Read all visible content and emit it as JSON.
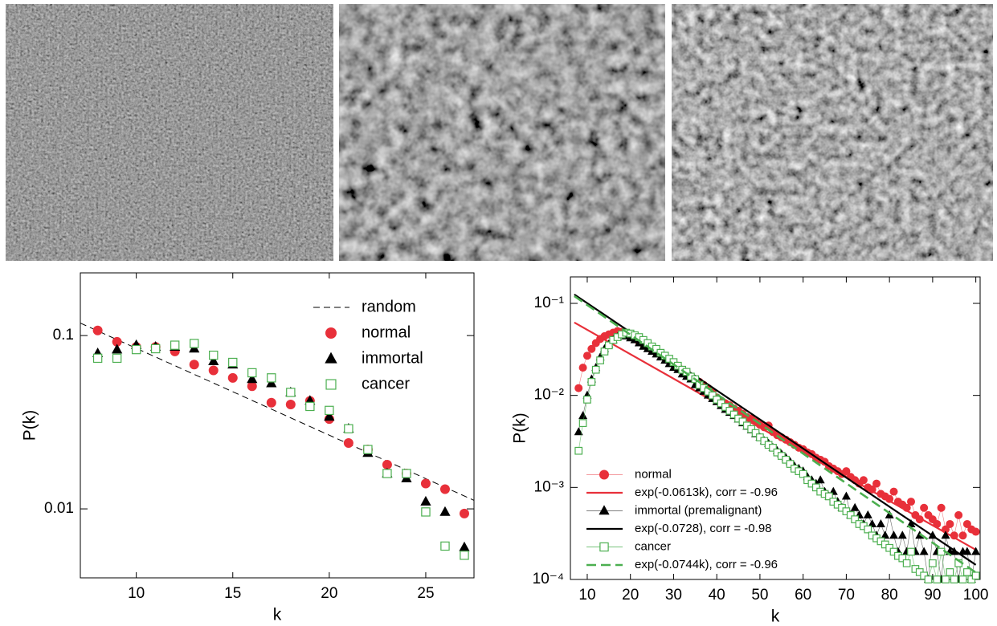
{
  "chart_data": [
    {
      "type": "scatter",
      "xlabel": "k",
      "ylabel": "P(k)",
      "yscale": "log",
      "legend": "upper right",
      "xlim": [
        7.1,
        27.5
      ],
      "ylim": [
        0.004,
        0.23
      ],
      "xticks": [
        10,
        15,
        20,
        25
      ],
      "yticks": [
        0.1,
        0.01
      ],
      "x": [
        8,
        9,
        10,
        11,
        12,
        13,
        14,
        15,
        16,
        17,
        18,
        19,
        20,
        21,
        22,
        23,
        24,
        25,
        26,
        27
      ],
      "series": [
        {
          "name": "random",
          "color": "#000000",
          "marker": "none",
          "linestyle": "dashed",
          "linewidth": 1,
          "x": [
            7.1,
            27.5
          ],
          "values": [
            0.118,
            0.0112
          ]
        },
        {
          "name": "normal",
          "color": "#e8303a",
          "marker": "circle",
          "linestyle": "none",
          "linewidth": 0,
          "values": [
            0.107,
            0.092,
            0.086,
            0.086,
            0.081,
            0.068,
            0.063,
            0.057,
            0.051,
            0.041,
            0.04,
            0.042,
            0.033,
            0.024,
            0.022,
            0.018,
            0.016,
            0.014,
            0.013,
            0.0094
          ]
        },
        {
          "name": "immortal",
          "color": "#000000",
          "marker": "triangle",
          "linestyle": "none",
          "linewidth": 0,
          "values": [
            0.079,
            0.083,
            0.088,
            0.086,
            0.086,
            0.084,
            0.071,
            0.068,
            0.056,
            0.053,
            0.047,
            0.042,
            0.034,
            0.029,
            0.021,
            0.016,
            0.015,
            0.011,
            0.0096,
            0.006
          ]
        },
        {
          "name": "cancer",
          "color": "#4caf50",
          "marker": "square-open",
          "linestyle": "none",
          "linewidth": 0,
          "values": [
            0.074,
            0.074,
            0.083,
            0.084,
            0.088,
            0.09,
            0.077,
            0.07,
            0.061,
            0.057,
            0.047,
            0.039,
            0.037,
            0.029,
            0.022,
            0.016,
            0.016,
            0.0096,
            0.0061,
            0.0054
          ]
        }
      ]
    },
    {
      "type": "line",
      "xlabel": "k",
      "ylabel": "P(k)",
      "yscale": "log",
      "legend": "lower left",
      "xlim": [
        6.1,
        101
      ],
      "ylim": [
        0.0001,
        0.194
      ],
      "xticks": [
        10,
        20,
        30,
        40,
        50,
        60,
        70,
        80,
        90,
        100
      ],
      "yticks": [
        {
          "value": 0.1,
          "label": "10⁻¹"
        },
        {
          "value": 0.01,
          "label": "10⁻²"
        },
        {
          "value": 0.001,
          "label": "10⁻³"
        },
        {
          "value": 0.0001,
          "label": "10⁻⁴"
        }
      ],
      "x": [
        8,
        9,
        10,
        11,
        12,
        13,
        14,
        15,
        16,
        17,
        18,
        19,
        20,
        21,
        22,
        23,
        24,
        25,
        26,
        27,
        28,
        29,
        30,
        31,
        32,
        33,
        34,
        35,
        36,
        37,
        38,
        39,
        40,
        41,
        42,
        43,
        44,
        45,
        46,
        47,
        48,
        49,
        50,
        51,
        52,
        53,
        54,
        55,
        56,
        57,
        58,
        59,
        60,
        61,
        62,
        63,
        64,
        65,
        66,
        67,
        68,
        69,
        70,
        71,
        72,
        73,
        74,
        75,
        76,
        77,
        78,
        79,
        80,
        81,
        82,
        83,
        84,
        85,
        86,
        87,
        88,
        89,
        90,
        91,
        92,
        93,
        94,
        95,
        96,
        97,
        98,
        99,
        100
      ],
      "series": [
        {
          "name": "normal",
          "color": "#e8303a",
          "marker": "circle",
          "linestyle": "solid",
          "linewidth": 0.6,
          "values": [
            0.012,
            0.02,
            0.027,
            0.032,
            0.037,
            0.041,
            0.044,
            0.046,
            0.048,
            0.05,
            0.049,
            0.047,
            0.043,
            0.041,
            0.038,
            0.036,
            0.034,
            0.031,
            0.029,
            0.028,
            0.026,
            0.024,
            0.022,
            0.021,
            0.019,
            0.018,
            0.016,
            0.015,
            0.014,
            0.013,
            0.012,
            0.011,
            0.0095,
            0.0088,
            0.0082,
            0.0078,
            0.0072,
            0.0068,
            0.0063,
            0.0058,
            0.0056,
            0.0052,
            0.0048,
            0.0045,
            0.0047,
            0.004,
            0.0037,
            0.0035,
            0.0033,
            0.0031,
            0.0029,
            0.0027,
            0.0026,
            0.0024,
            0.0023,
            0.0021,
            0.002,
            0.0019,
            0.0017,
            0.0016,
            0.0015,
            0.0014,
            0.0015,
            0.0013,
            0.0012,
            0.0011,
            0.0012,
            0.001,
            0.00095,
            0.0011,
            0.00085,
            0.0008,
            0.00075,
            0.0009,
            0.0007,
            0.00065,
            0.0006,
            0.0007,
            0.0005,
            0.00045,
            0.0006,
            0.0005,
            0.00045,
            0.0004,
            0.0006,
            0.00035,
            0.0004,
            0.0003,
            0.0005,
            0.0003,
            0.0004,
            0.00035,
            0.00033
          ]
        },
        {
          "name": "exp(-0.0613k), corr = -0.96",
          "color": "#e8303a",
          "marker": "none",
          "linestyle": "solid",
          "linewidth": 2.2,
          "x": [
            7,
            100
          ],
          "values": [
            0.062,
            0.00021
          ]
        },
        {
          "name": "immortal (premalignant)",
          "color": "#000000",
          "marker": "triangle",
          "linestyle": "solid",
          "linewidth": 0.6,
          "values": [
            0.004,
            0.006,
            0.01,
            0.015,
            0.02,
            0.026,
            0.032,
            0.036,
            0.04,
            0.043,
            0.045,
            0.044,
            0.042,
            0.04,
            0.037,
            0.034,
            0.032,
            0.03,
            0.028,
            0.026,
            0.024,
            0.022,
            0.02,
            0.019,
            0.017,
            0.016,
            0.015,
            0.013,
            0.012,
            0.011,
            0.01,
            0.0092,
            0.0085,
            0.0077,
            0.007,
            0.0065,
            0.006,
            0.0055,
            0.005,
            0.0046,
            0.0042,
            0.0038,
            0.0035,
            0.0032,
            0.003,
            0.0027,
            0.0025,
            0.0023,
            0.0021,
            0.0019,
            0.0017,
            0.0016,
            0.0015,
            0.0013,
            0.0012,
            0.0011,
            0.0012,
            0.0009,
            0.0008,
            0.0009,
            0.0007,
            0.0006,
            0.0008,
            0.0005,
            0.0006,
            0.0005,
            0.0004,
            0.0005,
            0.0004,
            0.0003,
            0.0004,
            0.0003,
            0.0005,
            0.0003,
            0.0002,
            0.0003,
            0.0002,
            0.0004,
            0.0002,
            0.0003,
            0.0002,
            0.0001,
            0.0003,
            0.0002,
            0.0001,
            0.0003,
            0.0002,
            0.0002,
            0.0001,
            0.0002,
            0.0002,
            0.0001,
            0.0002
          ]
        },
        {
          "name": "exp(-0.0728), corr = -0.98",
          "color": "#000000",
          "marker": "none",
          "linestyle": "solid",
          "linewidth": 2.2,
          "x": [
            7,
            100
          ],
          "values": [
            0.125,
            0.000144
          ]
        },
        {
          "name": "cancer",
          "color": "#4caf50",
          "marker": "square-open",
          "linestyle": "solid",
          "linewidth": 0.8,
          "values": [
            0.0025,
            0.005,
            0.009,
            0.014,
            0.019,
            0.024,
            0.03,
            0.035,
            0.04,
            0.043,
            0.046,
            0.048,
            0.047,
            0.045,
            0.043,
            0.04,
            0.037,
            0.034,
            0.032,
            0.029,
            0.027,
            0.025,
            0.023,
            0.021,
            0.019,
            0.018,
            0.016,
            0.015,
            0.013,
            0.012,
            0.011,
            0.01,
            0.009,
            0.0082,
            0.0075,
            0.0068,
            0.0062,
            0.0056,
            0.0052,
            0.0047,
            0.0043,
            0.0039,
            0.0035,
            0.0032,
            0.0029,
            0.0027,
            0.0024,
            0.0022,
            0.002,
            0.0018,
            0.0016,
            0.0015,
            0.0014,
            0.0012,
            0.0011,
            0.001,
            0.0009,
            0.00085,
            0.0008,
            0.0007,
            0.00065,
            0.0006,
            0.00055,
            0.0005,
            0.00045,
            0.0004,
            0.00038,
            0.00035,
            0.0003,
            0.00028,
            0.00026,
            0.00024,
            0.00022,
            0.0002,
            0.00018,
            0.00017,
            0.00015,
            0.0002,
            0.00013,
            0.00012,
            0.00011,
            0.0001,
            0.00015,
            0.0001,
            0.0002,
            0.0001,
            0.00012,
            0.0001,
            0.00015,
            0.0001,
            0.00012,
            0.0001,
            0.00011
          ]
        },
        {
          "name": "exp(-0.0744k), corr = -0.96",
          "color": "#4caf50",
          "marker": "none",
          "linestyle": "dashed",
          "linewidth": 2.6,
          "x": [
            7,
            100
          ],
          "values": [
            0.12,
            0.000119
          ]
        }
      ]
    }
  ]
}
